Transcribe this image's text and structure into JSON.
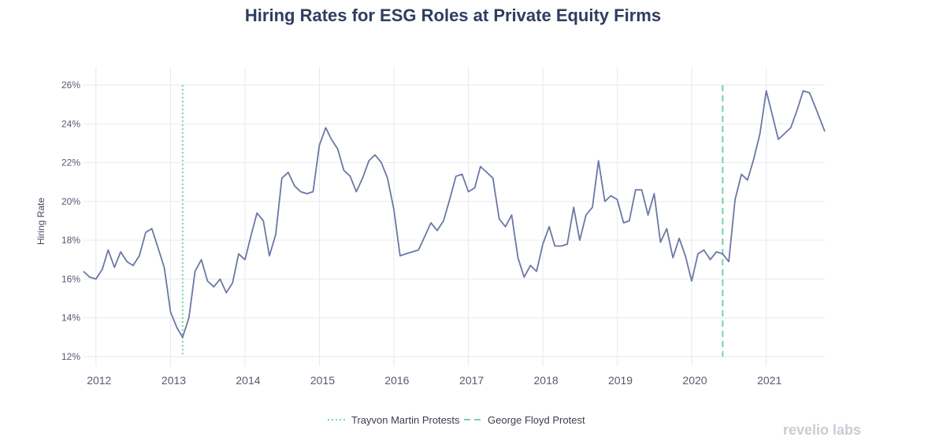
{
  "brand": "revelio labs",
  "colors": {
    "series": "#6b78a5",
    "trayvon": "#74d3a9",
    "floyd": "#74d3a9",
    "grid": "#e9e9ee",
    "title": "#2d3e5e"
  },
  "chart_data": {
    "type": "line",
    "title": "Hiring Rates for ESG Roles at Private Equity Firms",
    "xlabel": "",
    "ylabel": "Hiring Rate",
    "ylim": [
      12,
      26
    ],
    "y_ticks": [
      {
        "value": 12,
        "label": "12%"
      },
      {
        "value": 14,
        "label": "14%"
      },
      {
        "value": 16,
        "label": "16%"
      },
      {
        "value": 18,
        "label": "18%"
      },
      {
        "value": 20,
        "label": "20%"
      },
      {
        "value": 22,
        "label": "22%"
      },
      {
        "value": 24,
        "label": "24%"
      },
      {
        "value": 26,
        "label": "26%"
      }
    ],
    "x_range": [
      "2011-11-01",
      "2021-10-15"
    ],
    "x_ticks": [
      {
        "date": "2012-01-01",
        "label": "2012"
      },
      {
        "date": "2013-01-01",
        "label": "2013"
      },
      {
        "date": "2014-01-01",
        "label": "2014"
      },
      {
        "date": "2015-01-01",
        "label": "2015"
      },
      {
        "date": "2016-01-01",
        "label": "2016"
      },
      {
        "date": "2017-01-01",
        "label": "2017"
      },
      {
        "date": "2018-01-01",
        "label": "2018"
      },
      {
        "date": "2019-01-01",
        "label": "2019"
      },
      {
        "date": "2020-01-01",
        "label": "2020"
      },
      {
        "date": "2021-01-01",
        "label": "2021"
      }
    ],
    "grid": true,
    "legend": "bottom-center",
    "events": [
      {
        "name": "Trayvon Martin Protests",
        "date": "2013-03-01",
        "style": "dotted"
      },
      {
        "name": "George Floyd Protest",
        "date": "2020-06-01",
        "style": "dashed"
      }
    ],
    "series": [
      {
        "name": "",
        "x": [
          "2011-11-01",
          "2011-12-01",
          "2012-01-01",
          "2012-02-01",
          "2012-03-01",
          "2012-04-01",
          "2012-05-01",
          "2012-06-01",
          "2012-07-01",
          "2012-08-01",
          "2012-09-01",
          "2012-10-01",
          "2012-11-01",
          "2012-12-01",
          "2013-01-01",
          "2013-02-01",
          "2013-03-01",
          "2013-04-01",
          "2013-05-01",
          "2013-06-01",
          "2013-07-01",
          "2013-08-01",
          "2013-09-01",
          "2013-10-01",
          "2013-11-01",
          "2013-12-01",
          "2014-01-01",
          "2014-02-01",
          "2014-03-01",
          "2014-04-01",
          "2014-05-01",
          "2014-06-01",
          "2014-07-01",
          "2014-08-01",
          "2014-09-01",
          "2014-10-01",
          "2014-11-01",
          "2014-12-01",
          "2015-01-01",
          "2015-02-01",
          "2015-03-01",
          "2015-04-01",
          "2015-05-01",
          "2015-06-01",
          "2015-07-01",
          "2015-08-01",
          "2015-09-01",
          "2015-10-01",
          "2015-11-01",
          "2015-12-01",
          "2016-01-01",
          "2016-02-01",
          "2016-03-01",
          "2016-04-01",
          "2016-05-01",
          "2016-06-01",
          "2016-07-01",
          "2016-08-01",
          "2016-09-01",
          "2016-10-01",
          "2016-11-01",
          "2016-12-01",
          "2017-01-01",
          "2017-02-01",
          "2017-03-01",
          "2017-04-01",
          "2017-05-01",
          "2017-06-01",
          "2017-07-01",
          "2017-08-01",
          "2017-09-01",
          "2017-10-01",
          "2017-11-01",
          "2017-12-01",
          "2018-01-01",
          "2018-02-01",
          "2018-03-01",
          "2018-04-01",
          "2018-05-01",
          "2018-06-01",
          "2018-07-01",
          "2018-08-01",
          "2018-09-01",
          "2018-10-01",
          "2018-11-01",
          "2018-12-01",
          "2019-01-01",
          "2019-02-01",
          "2019-03-01",
          "2019-04-01",
          "2019-05-01",
          "2019-06-01",
          "2019-07-01",
          "2019-08-01",
          "2019-09-01",
          "2019-10-01",
          "2019-11-01",
          "2019-12-01",
          "2020-01-01",
          "2020-02-01",
          "2020-03-01",
          "2020-04-01",
          "2020-05-01",
          "2020-06-01",
          "2020-07-01",
          "2020-08-01",
          "2020-09-01",
          "2020-10-01",
          "2020-11-01",
          "2020-12-01",
          "2021-01-01",
          "2021-02-01",
          "2021-03-01",
          "2021-04-01",
          "2021-05-01",
          "2021-06-01",
          "2021-07-01",
          "2021-08-01",
          "2021-09-01",
          "2021-10-15"
        ],
        "values": [
          16.4,
          16.1,
          16.0,
          16.5,
          17.5,
          16.6,
          17.4,
          16.9,
          16.7,
          17.2,
          18.4,
          18.6,
          17.6,
          16.6,
          14.3,
          13.5,
          13.0,
          14.0,
          16.4,
          17.0,
          15.9,
          15.6,
          16.0,
          15.3,
          15.8,
          17.3,
          17.0,
          18.3,
          19.4,
          19.0,
          17.2,
          18.3,
          21.2,
          21.5,
          20.8,
          20.5,
          20.4,
          20.5,
          22.9,
          23.8,
          23.2,
          22.7,
          21.6,
          21.3,
          20.5,
          21.2,
          22.1,
          22.4,
          22.0,
          21.2,
          19.6,
          17.2,
          17.3,
          17.4,
          17.5,
          18.2,
          18.9,
          18.5,
          19.0,
          20.1,
          21.3,
          21.4,
          20.5,
          20.7,
          21.8,
          21.5,
          21.2,
          19.1,
          18.7,
          19.3,
          17.1,
          16.1,
          16.7,
          16.4,
          17.8,
          18.7,
          17.7,
          17.7,
          17.8,
          19.7,
          18.0,
          19.3,
          19.7,
          22.1,
          20.0,
          20.3,
          20.1,
          18.9,
          19.0,
          20.6,
          20.6,
          19.3,
          20.4,
          17.9,
          18.6,
          17.1,
          18.1,
          17.2,
          15.9,
          17.3,
          17.5,
          17.0,
          17.4,
          17.3,
          16.9,
          20.1,
          21.4,
          21.1,
          22.2,
          23.5,
          25.7,
          24.4,
          23.2,
          23.5,
          23.8,
          24.7,
          25.7,
          25.6,
          24.8,
          23.6
        ]
      }
    ]
  }
}
